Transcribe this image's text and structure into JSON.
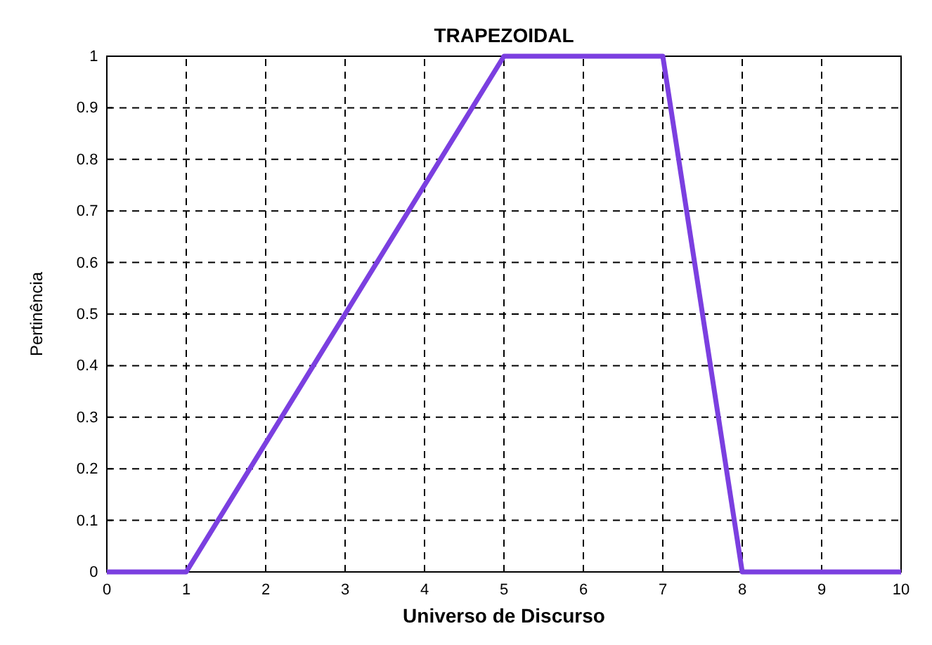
{
  "chart_data": {
    "type": "line",
    "title": "TRAPEZOIDAL",
    "xlabel": "Universo de Discurso",
    "ylabel": "Pertinência",
    "x": [
      0,
      1,
      5,
      7,
      8,
      10
    ],
    "series": [
      {
        "color": "#7b3fe0",
        "values": [
          0,
          0,
          1,
          1,
          0,
          0
        ]
      }
    ],
    "xlim": [
      0,
      10
    ],
    "ylim": [
      0,
      1
    ],
    "xticks": [
      0,
      1,
      2,
      3,
      4,
      5,
      6,
      7,
      8,
      9,
      10
    ],
    "yticks": [
      0,
      0.1,
      0.2,
      0.3,
      0.4,
      0.5,
      0.6,
      0.7,
      0.8,
      0.9,
      1
    ],
    "grid": true,
    "marker": "none",
    "line_style": "solid"
  }
}
